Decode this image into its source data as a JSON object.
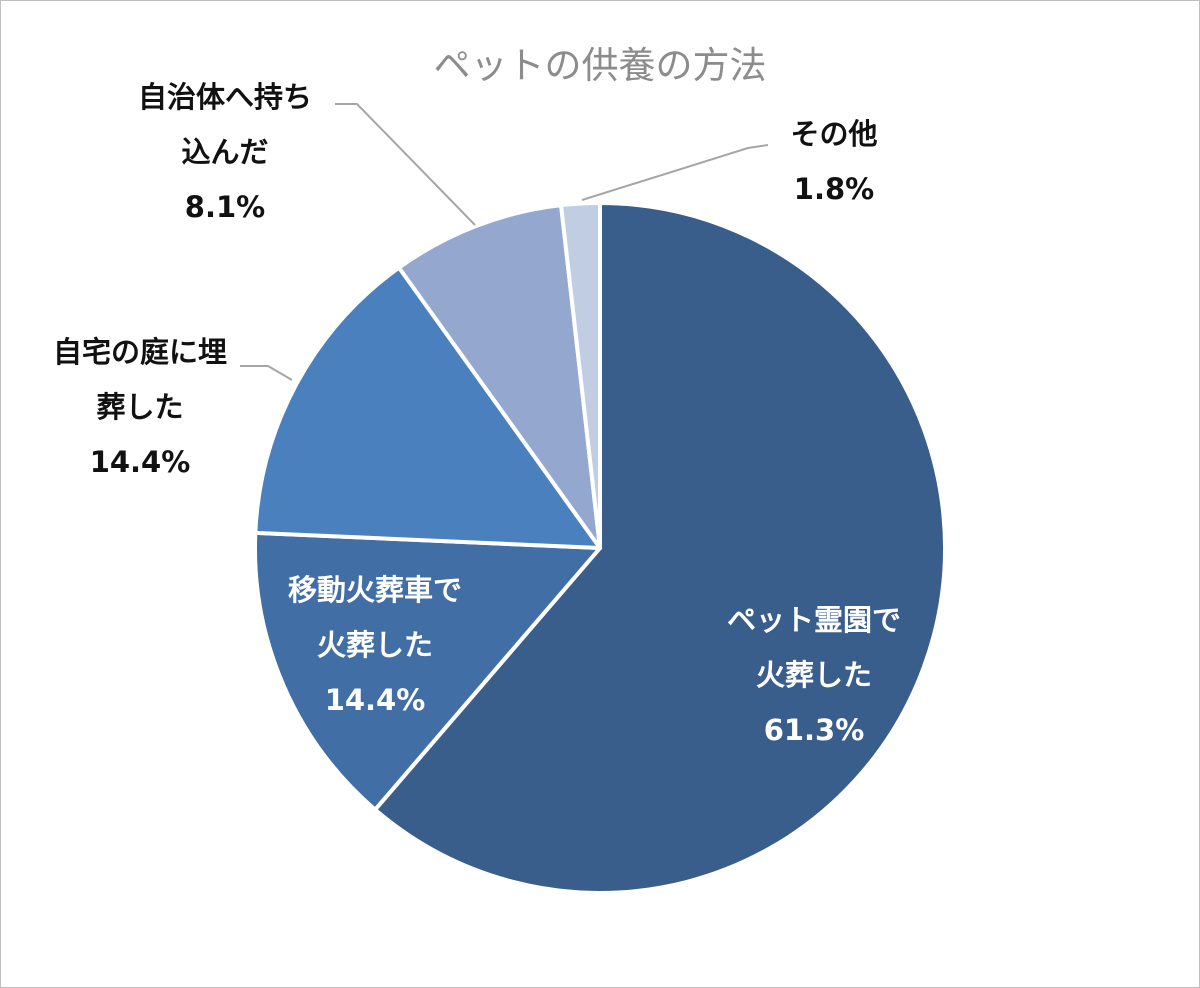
{
  "chart_data": {
    "type": "pie",
    "title": "ペットの供養の方法",
    "start_angle_deg": 0,
    "direction": "clockwise",
    "slices": [
      {
        "label": [
          "ペット霊園で",
          "火葬した"
        ],
        "value": 61.3,
        "display": "61.3%",
        "color": "#3a5e8c",
        "label_color": "#ffffff"
      },
      {
        "label": [
          "移動火葬車で",
          "火葬した"
        ],
        "value": 14.4,
        "display": "14.4%",
        "color": "#416ea5",
        "label_color": "#ffffff"
      },
      {
        "label": [
          "自宅の庭に埋",
          "葬した"
        ],
        "value": 14.4,
        "display": "14.4%",
        "color": "#4a80be",
        "label_color": "#111111"
      },
      {
        "label": [
          "自治体へ持ち",
          "込んだ"
        ],
        "value": 8.1,
        "display": "8.1%",
        "color": "#94a8cf",
        "label_color": "#111111"
      },
      {
        "label": [
          "その他"
        ],
        "value": 1.8,
        "display": "1.8%",
        "color": "#c1cde3",
        "label_color": "#111111"
      }
    ],
    "legend": "none",
    "data_labels": "category and percentage"
  }
}
